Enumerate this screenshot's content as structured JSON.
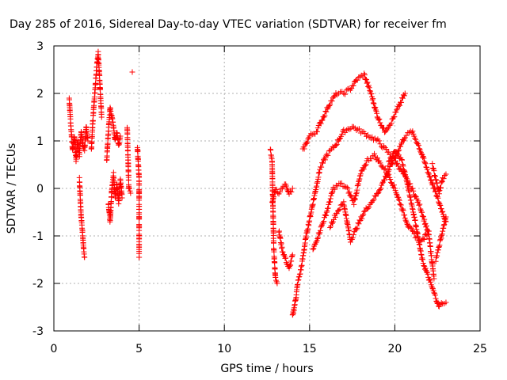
{
  "chart_data": {
    "type": "scatter",
    "title": "Day 285 of 2016, Sidereal Day-to-day VTEC variation (SDTVAR) for receiver fm",
    "xlabel": "GPS time / hours",
    "ylabel": "SDTVAR / TECUs",
    "xlim": [
      0,
      25
    ],
    "ylim": [
      -3,
      3
    ],
    "xticks": [
      "0",
      "5",
      "10",
      "15",
      "20",
      "25"
    ],
    "yticks": [
      "-3",
      "-2",
      "-1",
      "0",
      "1",
      "2",
      "3"
    ],
    "grid": true,
    "legend": "none",
    "marker": "plus",
    "color": "#ff0000",
    "segments": [
      {
        "x": [
          0.9,
          1.0,
          1.1,
          1.2,
          1.3,
          1.4,
          1.5,
          1.6,
          1.7,
          1.8,
          1.9,
          2.0
        ],
        "y": [
          1.9,
          1.3,
          0.8,
          1.1,
          0.6,
          1.0,
          0.7,
          1.2,
          0.9,
          0.8,
          1.3,
          1.0
        ]
      },
      {
        "x": [
          1.5,
          1.6,
          1.7,
          1.75,
          1.8
        ],
        "y": [
          0.2,
          -0.6,
          -1.0,
          -1.3,
          -1.45
        ]
      },
      {
        "x": [
          2.2,
          2.3,
          2.4,
          2.5,
          2.6,
          2.7,
          2.8
        ],
        "y": [
          0.8,
          1.5,
          2.0,
          2.5,
          2.85,
          2.2,
          1.5
        ]
      },
      {
        "x": [
          3.1,
          3.2,
          3.3,
          3.4,
          3.5,
          3.6,
          3.7,
          3.8,
          3.9
        ],
        "y": [
          0.6,
          1.2,
          1.7,
          1.5,
          1.3,
          1.0,
          1.2,
          0.9,
          1.1
        ]
      },
      {
        "x": [
          3.2,
          3.3,
          3.4,
          3.5,
          3.6,
          3.7,
          3.8,
          3.9,
          4.0
        ],
        "y": [
          -0.3,
          -0.7,
          0.0,
          0.3,
          -0.2,
          0.1,
          -0.3,
          0.2,
          -0.2
        ]
      },
      {
        "x": [
          4.3,
          4.4,
          4.5
        ],
        "y": [
          1.3,
          0.0,
          -0.1
        ]
      },
      {
        "x": [
          4.6
        ],
        "y": [
          2.45
        ]
      },
      {
        "x": [
          4.9,
          5.0,
          5.0,
          5.0
        ],
        "y": [
          0.9,
          0.2,
          -1.2,
          -1.45
        ]
      },
      {
        "x": [
          12.7,
          12.8,
          12.9,
          13.0,
          13.1
        ],
        "y": [
          0.8,
          0.6,
          -1.3,
          -1.9,
          -2.0
        ]
      },
      {
        "x": [
          12.8,
          13.0,
          13.2,
          13.4,
          13.6,
          13.8,
          14.0
        ],
        "y": [
          -0.3,
          0.0,
          -0.1,
          0.0,
          0.1,
          -0.1,
          0.0
        ]
      },
      {
        "x": [
          13.2,
          13.4,
          13.6,
          13.8,
          14.0
        ],
        "y": [
          -0.9,
          -1.3,
          -1.5,
          -1.7,
          -1.4
        ]
      },
      {
        "x": [
          14.0,
          14.1,
          14.2,
          14.3,
          14.5,
          14.8,
          15.2,
          15.6,
          16.0,
          16.5,
          17.0,
          17.5,
          18.0,
          18.5,
          19.0,
          19.5,
          20.0,
          20.5,
          21.0,
          21.5,
          22.0,
          22.3
        ],
        "y": [
          -2.7,
          -2.5,
          -2.3,
          -2.0,
          -1.7,
          -1.0,
          -0.3,
          0.4,
          0.7,
          0.9,
          1.2,
          1.3,
          1.2,
          1.1,
          1.0,
          0.8,
          0.6,
          0.3,
          0.0,
          -0.4,
          -1.0,
          -1.9
        ]
      },
      {
        "x": [
          14.6,
          15.0,
          15.4,
          15.8,
          16.2,
          16.6,
          17.0,
          17.4,
          17.8,
          18.2,
          18.6,
          19.0,
          19.4,
          19.8,
          20.2,
          20.6
        ],
        "y": [
          0.8,
          1.1,
          1.2,
          1.5,
          1.8,
          2.0,
          2.0,
          2.1,
          2.3,
          2.4,
          2.0,
          1.5,
          1.2,
          1.4,
          1.7,
          2.0
        ]
      },
      {
        "x": [
          15.2,
          15.6,
          16.0,
          16.4,
          16.8,
          17.2,
          17.6,
          18.0,
          18.4,
          18.8,
          19.2,
          19.6,
          20.0,
          20.4,
          20.8,
          21.2,
          21.6,
          22.0
        ],
        "y": [
          -1.3,
          -0.9,
          -0.5,
          0.0,
          0.1,
          0.0,
          -0.3,
          0.3,
          0.6,
          0.7,
          0.5,
          0.3,
          0.0,
          -0.4,
          -0.8,
          -1.0,
          -1.1,
          -0.9
        ]
      },
      {
        "x": [
          16.2,
          16.6,
          17.0,
          17.4,
          17.8,
          18.2,
          18.6,
          19.0,
          19.4,
          19.8,
          20.2,
          20.6,
          21.0,
          21.4,
          21.8,
          22.2,
          22.6,
          23.0
        ],
        "y": [
          -0.8,
          -0.5,
          -0.3,
          -1.1,
          -0.8,
          -0.5,
          -0.3,
          -0.1,
          0.2,
          0.5,
          0.8,
          1.1,
          1.2,
          0.9,
          0.5,
          0.1,
          -0.3,
          -0.7
        ]
      },
      {
        "x": [
          19.6,
          20.0,
          20.4,
          20.8,
          21.2,
          21.6,
          22.0,
          22.4,
          22.6,
          22.8,
          23.0
        ],
        "y": [
          0.5,
          0.8,
          0.6,
          0.0,
          -0.7,
          -1.5,
          -1.9,
          -2.3,
          -2.5,
          -2.4,
          -2.4
        ]
      },
      {
        "x": [
          22.2,
          22.4,
          22.6,
          22.8,
          23.0
        ],
        "y": [
          0.5,
          0.2,
          -0.1,
          0.2,
          0.3
        ]
      },
      {
        "x": [
          22.4,
          22.6,
          22.8,
          23.0
        ],
        "y": [
          -1.5,
          -1.2,
          -0.9,
          -0.6
        ]
      }
    ]
  }
}
